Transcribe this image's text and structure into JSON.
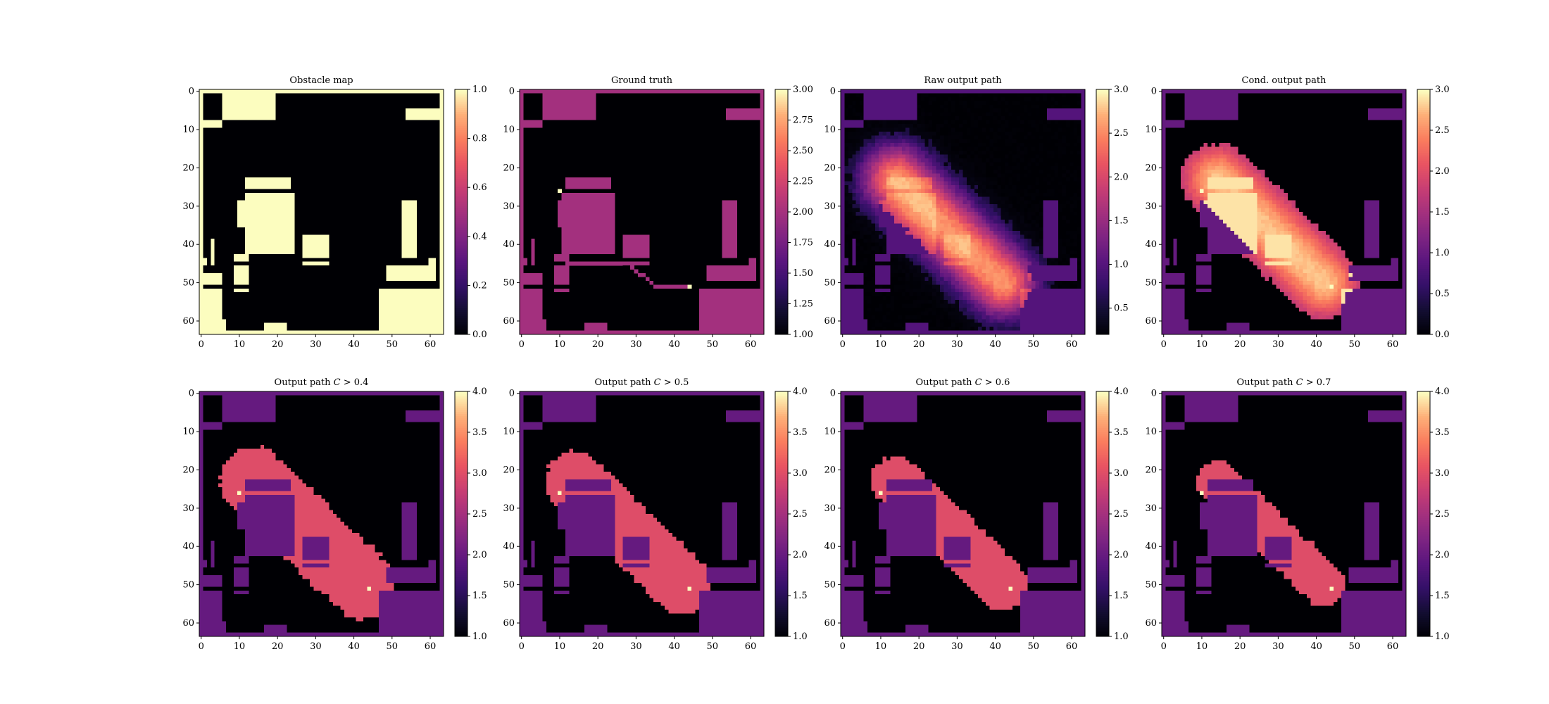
{
  "figure": {
    "panels_grid": [
      2,
      4
    ],
    "map_size": 64
  },
  "chart_data": [
    {
      "type": "heatmap",
      "title": "Obstacle map",
      "colormap": "magma",
      "clim": [
        0,
        1
      ],
      "colorbar_ticks": [
        "0.0",
        "0.2",
        "0.4",
        "0.6",
        "0.8",
        "1.0"
      ],
      "x_ticks": [
        "0",
        "10",
        "20",
        "30",
        "40",
        "50",
        "60"
      ],
      "y_ticks": [
        "0",
        "10",
        "20",
        "30",
        "40",
        "50",
        "60"
      ],
      "obstacle_value": 1.0,
      "free_value": 0.0
    },
    {
      "type": "heatmap",
      "title": "Ground truth",
      "colormap": "magma",
      "clim": [
        1,
        3
      ],
      "colorbar_ticks": [
        "1.00",
        "1.25",
        "1.50",
        "1.75",
        "2.00",
        "2.25",
        "2.50",
        "2.75",
        "3.00"
      ],
      "x_ticks": [
        "0",
        "10",
        "20",
        "30",
        "40",
        "50",
        "60"
      ],
      "y_ticks": [
        "0",
        "10",
        "20",
        "30",
        "40",
        "50",
        "60"
      ],
      "obstacle_value": 2.0,
      "free_value": 1.0,
      "path_value": 2.0,
      "endpoint_value": 3.0
    },
    {
      "type": "heatmap",
      "title": "Raw output path",
      "colormap": "magma",
      "clim": [
        0.2,
        3
      ],
      "colorbar_ticks": [
        "0.5",
        "1.0",
        "1.5",
        "2.0",
        "2.5",
        "3.0"
      ],
      "x_ticks": [
        "0",
        "10",
        "20",
        "30",
        "40",
        "50",
        "60"
      ],
      "y_ticks": [
        "0",
        "10",
        "20",
        "30",
        "40",
        "50",
        "60"
      ],
      "obstacle_value": 1.0,
      "free_value": 0.2
    },
    {
      "type": "heatmap",
      "title": "Cond. output path",
      "colormap": "magma",
      "clim": [
        0,
        3
      ],
      "colorbar_ticks": [
        "0.0",
        "0.5",
        "1.0",
        "1.5",
        "2.0",
        "2.5",
        "3.0"
      ],
      "x_ticks": [
        "0",
        "10",
        "20",
        "30",
        "40",
        "50",
        "60"
      ],
      "y_ticks": [
        "0",
        "10",
        "20",
        "30",
        "40",
        "50",
        "60"
      ],
      "obstacle_value": 1.0,
      "free_value": 0.0
    },
    {
      "type": "heatmap",
      "title": "Output path C > 0.4",
      "title_parts": [
        "Output path ",
        "C",
        " > 0.4"
      ],
      "colormap": "magma",
      "clim": [
        1,
        4
      ],
      "colorbar_ticks": [
        "1.0",
        "1.5",
        "2.0",
        "2.5",
        "3.0",
        "3.5",
        "4.0"
      ],
      "x_ticks": [
        "0",
        "10",
        "20",
        "30",
        "40",
        "50",
        "60"
      ],
      "y_ticks": [
        "0",
        "10",
        "20",
        "30",
        "40",
        "50",
        "60"
      ],
      "obstacle_value": 2.0,
      "free_value": 1.0,
      "path_value": 3.0,
      "endpoint_value": 4.0,
      "threshold": 0.4
    },
    {
      "type": "heatmap",
      "title": "Output path C > 0.5",
      "title_parts": [
        "Output path ",
        "C",
        " > 0.5"
      ],
      "colormap": "magma",
      "clim": [
        1,
        4
      ],
      "colorbar_ticks": [
        "1.0",
        "1.5",
        "2.0",
        "2.5",
        "3.0",
        "3.5",
        "4.0"
      ],
      "x_ticks": [
        "0",
        "10",
        "20",
        "30",
        "40",
        "50",
        "60"
      ],
      "y_ticks": [
        "0",
        "10",
        "20",
        "30",
        "40",
        "50",
        "60"
      ],
      "obstacle_value": 2.0,
      "free_value": 1.0,
      "path_value": 3.0,
      "endpoint_value": 4.0,
      "threshold": 0.5
    },
    {
      "type": "heatmap",
      "title": "Output path C > 0.6",
      "title_parts": [
        "Output path ",
        "C",
        " > 0.6"
      ],
      "colormap": "magma",
      "clim": [
        1,
        4
      ],
      "colorbar_ticks": [
        "1.0",
        "1.5",
        "2.0",
        "2.5",
        "3.0",
        "3.5",
        "4.0"
      ],
      "x_ticks": [
        "0",
        "10",
        "20",
        "30",
        "40",
        "50",
        "60"
      ],
      "y_ticks": [
        "0",
        "10",
        "20",
        "30",
        "40",
        "50",
        "60"
      ],
      "obstacle_value": 2.0,
      "free_value": 1.0,
      "path_value": 3.0,
      "endpoint_value": 4.0,
      "threshold": 0.6
    },
    {
      "type": "heatmap",
      "title": "Output path C > 0.7",
      "title_parts": [
        "Output path ",
        "C",
        " > 0.7"
      ],
      "colormap": "magma",
      "clim": [
        1,
        4
      ],
      "colorbar_ticks": [
        "1.0",
        "1.5",
        "2.0",
        "2.5",
        "3.0",
        "3.5",
        "4.0"
      ],
      "x_ticks": [
        "0",
        "10",
        "20",
        "30",
        "40",
        "50",
        "60"
      ],
      "y_ticks": [
        "0",
        "10",
        "20",
        "30",
        "40",
        "50",
        "60"
      ],
      "obstacle_value": 2.0,
      "free_value": 1.0,
      "path_value": 3.0,
      "endpoint_value": 4.0,
      "threshold": 0.7
    }
  ],
  "obstacles": [
    {
      "shape": "border-top",
      "rows": [
        0,
        0
      ],
      "cols": [
        0,
        63
      ]
    },
    {
      "shape": "border-bottom",
      "rows": [
        63,
        63
      ],
      "cols": [
        0,
        63
      ]
    },
    {
      "shape": "border-left",
      "rows": [
        0,
        63
      ],
      "cols": [
        0,
        0
      ]
    },
    {
      "shape": "border-right",
      "rows": [
        0,
        63
      ],
      "cols": [
        63,
        63
      ]
    },
    {
      "shape": "rect",
      "rows": [
        1,
        7
      ],
      "cols": [
        6,
        19
      ]
    },
    {
      "shape": "rect",
      "rows": [
        8,
        9
      ],
      "cols": [
        0,
        5
      ]
    },
    {
      "shape": "rect",
      "rows": [
        5,
        7
      ],
      "cols": [
        54,
        62
      ]
    },
    {
      "shape": "rect",
      "rows": [
        23,
        25
      ],
      "cols": [
        12,
        23
      ]
    },
    {
      "shape": "rect",
      "rows": [
        27,
        42
      ],
      "cols": [
        12,
        24
      ]
    },
    {
      "shape": "rect",
      "rows": [
        29,
        35
      ],
      "cols": [
        10,
        11
      ]
    },
    {
      "shape": "rect",
      "rows": [
        38,
        43
      ],
      "cols": [
        27,
        33
      ]
    },
    {
      "shape": "rect",
      "rows": [
        45,
        45
      ],
      "cols": [
        27,
        33
      ]
    },
    {
      "shape": "rect",
      "rows": [
        29,
        43
      ],
      "cols": [
        53,
        56
      ]
    },
    {
      "shape": "rect",
      "rows": [
        39,
        45
      ],
      "cols": [
        3,
        3
      ]
    },
    {
      "shape": "rect",
      "rows": [
        43,
        44
      ],
      "cols": [
        9,
        12
      ]
    },
    {
      "shape": "rect",
      "rows": [
        46,
        50
      ],
      "cols": [
        9,
        12
      ]
    },
    {
      "shape": "rect",
      "rows": [
        52,
        52
      ],
      "cols": [
        9,
        12
      ]
    },
    {
      "shape": "rect",
      "rows": [
        44,
        45
      ],
      "cols": [
        1,
        1
      ]
    },
    {
      "shape": "rect",
      "rows": [
        48,
        50
      ],
      "cols": [
        1,
        5
      ]
    },
    {
      "shape": "rect",
      "rows": [
        52,
        62
      ],
      "cols": [
        1,
        5
      ]
    },
    {
      "shape": "rect",
      "rows": [
        60,
        62
      ],
      "cols": [
        6,
        6
      ]
    },
    {
      "shape": "rect",
      "rows": [
        46,
        49
      ],
      "cols": [
        49,
        59
      ]
    },
    {
      "shape": "rect",
      "rows": [
        44,
        49
      ],
      "cols": [
        60,
        61
      ]
    },
    {
      "shape": "rect",
      "rows": [
        52,
        62
      ],
      "cols": [
        47,
        62
      ]
    },
    {
      "shape": "rect",
      "rows": [
        61,
        62
      ],
      "cols": [
        17,
        22
      ]
    }
  ],
  "start_cell": [
    26,
    10
  ],
  "goal_cell": [
    51,
    44
  ]
}
